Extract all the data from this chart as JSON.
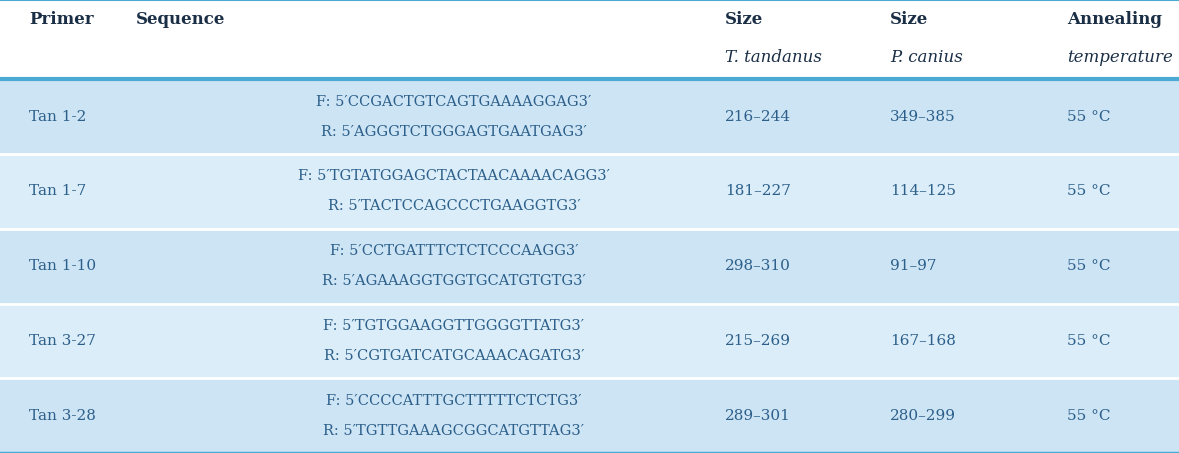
{
  "header_line1": [
    "Primer",
    "Sequence",
    "Size",
    "Size",
    "Annealing"
  ],
  "header_line2": [
    "",
    "",
    "T. tandanus",
    "P. canius",
    "temperature"
  ],
  "rows": [
    {
      "primer": "Tan 1-2",
      "seq_f": "F: 5′CCGACTGTCAGTGAAAAGGAG3′",
      "seq_r": "R: 5′AGGGTCTGGGAGTGAATGAG3′",
      "size_tan": "216–244",
      "size_pca": "349–385",
      "anneal": "55 °C"
    },
    {
      "primer": "Tan 1-7",
      "seq_f": "F: 5′TGTATGGAGCTACTAACAAAACAGG3′",
      "seq_r": "R: 5′TACTCCAGCCCTGAAGGTG3′",
      "size_tan": "181–227",
      "size_pca": "114–125",
      "anneal": "55 °C"
    },
    {
      "primer": "Tan 1-10",
      "seq_f": "F: 5′CCTGATTTCTCTCCCAAGG3′",
      "seq_r": "R: 5′AGAAAGGTGGTGCATGTGTG3′",
      "size_tan": "298–310",
      "size_pca": "91–97",
      "anneal": "55 °C"
    },
    {
      "primer": "Tan 3-27",
      "seq_f": "F: 5′TGTGGAAGGTTGGGGTTATG3′",
      "seq_r": "R: 5′CGTGATCATGCAAACAGATG3′",
      "size_tan": "215–269",
      "size_pca": "167–168",
      "anneal": "55 °C"
    },
    {
      "primer": "Tan 3-28",
      "seq_f": "F: 5′CCCCATTTGCTTTTTCTCTG3′",
      "seq_r": "R: 5′TGTTGAAAGCGGCATGTTAG3′",
      "size_tan": "289–301",
      "size_pca": "280–299",
      "anneal": "55 °C"
    }
  ],
  "row_colors": [
    "#cde4f5",
    "#daedf8",
    "#cde4f5",
    "#daedf8",
    "#cde4f5"
  ],
  "header_bg": "#ffffff",
  "border_color": "#4baad3",
  "text_color": "#2c5f8a",
  "header_text_color": "#1a2e45",
  "figsize": [
    11.79,
    4.53
  ],
  "dpi": 100,
  "header_fontsize": 12,
  "data_fontsize": 11,
  "seq_fontsize": 10.5
}
